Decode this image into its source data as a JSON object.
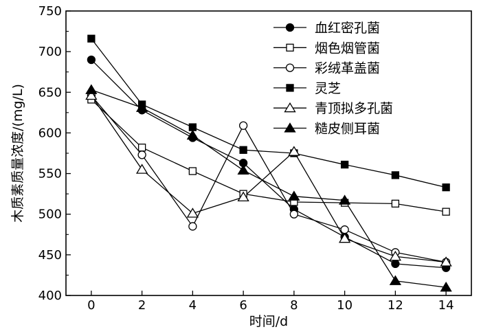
{
  "chart_data": {
    "type": "line",
    "xlabel": "时间/d",
    "ylabel": "木质素质量浓度/(mg/L)",
    "xlim": [
      -1,
      15
    ],
    "ylim": [
      400,
      750
    ],
    "x": [
      0,
      2,
      4,
      6,
      8,
      10,
      12,
      14
    ],
    "x_ticks": [
      "0",
      "2",
      "4",
      "6",
      "8",
      "10",
      "12",
      "14"
    ],
    "y_ticks": [
      "400",
      "450",
      "500",
      "550",
      "600",
      "650",
      "700",
      "750"
    ],
    "legend_position": "top-right",
    "grid": false,
    "series": [
      {
        "name": "血红密孔菌",
        "marker": "circle-filled",
        "values": [
          690,
          628,
          594,
          563,
          506,
          472,
          439,
          434
        ]
      },
      {
        "name": "烟色烟管菌",
        "marker": "square-open",
        "values": [
          641,
          582,
          553,
          525,
          515,
          514,
          513,
          503
        ]
      },
      {
        "name": "彩绒革盖菌",
        "marker": "circle-open",
        "values": [
          646,
          573,
          485,
          609,
          500,
          481,
          453,
          441
        ]
      },
      {
        "name": "灵芝",
        "marker": "square-filled",
        "values": [
          716,
          635,
          607,
          579,
          575,
          561,
          548,
          533
        ]
      },
      {
        "name": "青顶拟多孔菌",
        "marker": "triangle-open",
        "values": [
          646,
          555,
          501,
          521,
          577,
          470,
          448,
          441
        ]
      },
      {
        "name": "糙皮侧耳菌",
        "marker": "triangle-filled",
        "values": [
          653,
          631,
          597,
          554,
          522,
          517,
          418,
          410
        ]
      }
    ]
  }
}
